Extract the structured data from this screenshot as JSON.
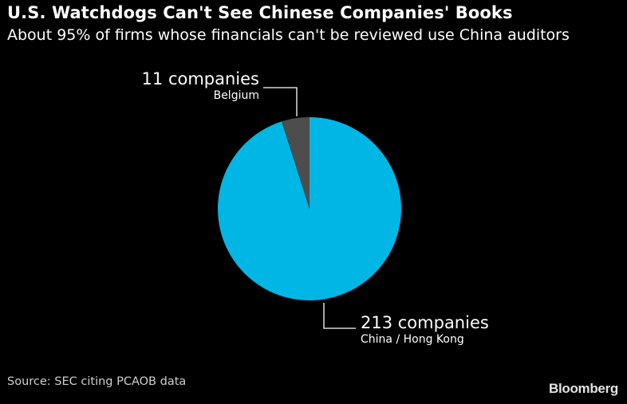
{
  "chart_data": {
    "type": "pie",
    "title": "U.S. Watchdogs Can't See Chinese Companies' Books",
    "subtitle": "About 95% of firms whose financials can't be reviewed use China auditors",
    "slices": [
      {
        "name": "China / Hong Kong",
        "value": 213,
        "value_label": "213 companies",
        "color": "#00b6e4"
      },
      {
        "name": "Belgium",
        "value": 11,
        "value_label": "11 companies",
        "color": "#4d4d4d"
      }
    ],
    "start_angle_deg": 0,
    "direction": "clockwise",
    "legend": "none"
  },
  "source": "Source: SEC citing PCAOB data",
  "brand": "Bloomberg",
  "colors": {
    "background": "#000000",
    "text": "#ffffff",
    "leader_line": "#ffffff"
  }
}
